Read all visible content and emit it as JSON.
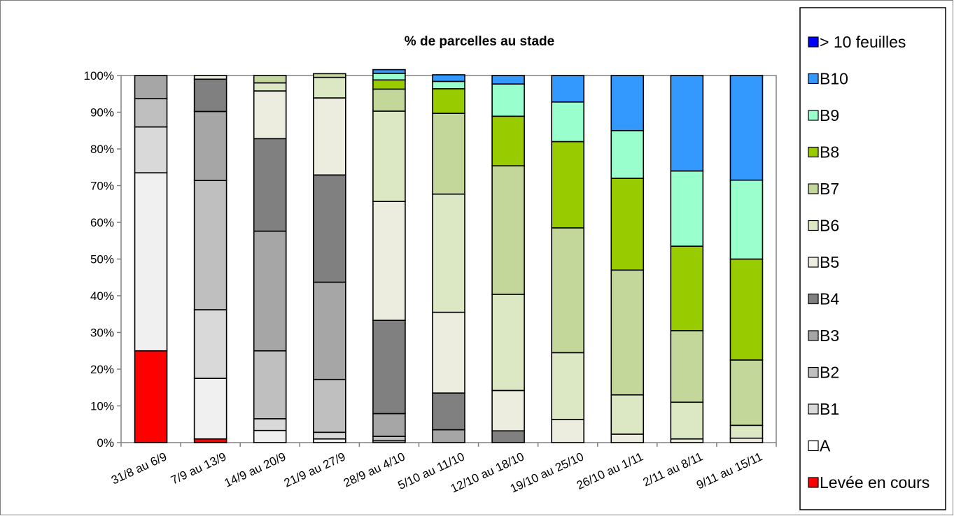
{
  "chart_data": {
    "type": "bar",
    "stacked": true,
    "title": "% de parcelles au stade",
    "xlabel": "",
    "ylabel": "",
    "ylim": [
      0,
      100
    ],
    "y_ticks": [
      "0%",
      "10%",
      "20%",
      "30%",
      "40%",
      "50%",
      "60%",
      "70%",
      "80%",
      "90%",
      "100%"
    ],
    "grid": false,
    "legend_position": "right",
    "categories": [
      "31/8 au 6/9",
      "7/9 au 13/9",
      "14/9 au 20/9",
      "21/9 au 27/9",
      "28/9 au 4/10",
      "5/10 au 11/10",
      "12/10 au 18/10",
      "19/10 au 25/10",
      "26/10 au 1/11",
      "2/11 au 8/11",
      "9/11 au 15/11"
    ],
    "series": [
      {
        "name": "Levée en cours",
        "color": "#ff0000",
        "values": [
          25,
          1,
          0,
          0,
          0,
          0,
          0,
          0,
          0,
          0,
          0
        ]
      },
      {
        "name": "A",
        "color": "#ffffff",
        "values": [
          0,
          0,
          0,
          0,
          0,
          0,
          0,
          0,
          0,
          0,
          0
        ]
      },
      {
        "name": "B1",
        "color": "#f0f0f0",
        "values": [
          48.5,
          16.5,
          3.3,
          1,
          0,
          0,
          0,
          0,
          0,
          0,
          0
        ]
      },
      {
        "name": "B2",
        "color": "#d9d9d9",
        "values": [
          12.5,
          18.7,
          3.2,
          1.8,
          0.5,
          0,
          0,
          0,
          0,
          0,
          0
        ]
      },
      {
        "name": "B3",
        "color": "#bfbfbf",
        "values": [
          7.7,
          35.2,
          18.5,
          14.4,
          1.2,
          0,
          0,
          0,
          0,
          0,
          0
        ]
      },
      {
        "name": "B4",
        "color": "#a6a6a6",
        "values": [
          6.3,
          18.8,
          32.6,
          26.5,
          6.2,
          3.5,
          0,
          0,
          0,
          0,
          0
        ]
      },
      {
        "name": "B5",
        "color": "#808080",
        "values": [
          0,
          8.8,
          25.2,
          29.2,
          25.4,
          10,
          3.2,
          0,
          0,
          0,
          0
        ]
      },
      {
        "name": "B6",
        "color": "#ededdf",
        "values": [
          0,
          1,
          13,
          21,
          32.4,
          22,
          11,
          6.3,
          2.3,
          1,
          1.2
        ]
      },
      {
        "name": "B7",
        "color": "#dce7c4",
        "values": [
          0,
          0,
          2.2,
          5.6,
          24.6,
          32.2,
          26.2,
          18.2,
          10.7,
          10,
          3.5
        ]
      },
      {
        "name": "B8",
        "color": "#c4d79b",
        "values": [
          0,
          0,
          2,
          1,
          6,
          22,
          35,
          34,
          34,
          19.5,
          17.8
        ]
      },
      {
        "name": "B9",
        "color": "#99cc00",
        "values": [
          0,
          0,
          0,
          0,
          2.5,
          6.7,
          13.5,
          23.5,
          25,
          23,
          27.5
        ]
      },
      {
        "name": "B10",
        "color": "#99ffcc",
        "values": [
          0,
          0,
          0,
          0,
          1.8,
          2,
          8.8,
          10.8,
          13,
          20.5,
          21.5
        ]
      },
      {
        "name": "> 10 feuilles",
        "color": "#3399ff",
        "values": [
          0,
          0,
          0,
          0,
          1,
          1.8,
          2.3,
          7.2,
          15,
          26,
          28.5
        ]
      }
    ],
    "legend": [
      {
        "label": "> 10 feuilles",
        "color": "#0000ff"
      },
      {
        "label": "B10",
        "color": "#3399ff"
      },
      {
        "label": "B9",
        "color": "#99ffcc"
      },
      {
        "label": "B8",
        "color": "#99cc00"
      },
      {
        "label": "B7",
        "color": "#c4d79b"
      },
      {
        "label": "B6",
        "color": "#dce7c4"
      },
      {
        "label": "B5",
        "color": "#ededdf"
      },
      {
        "label": "B4",
        "color": "#808080"
      },
      {
        "label": "B3",
        "color": "#a6a6a6"
      },
      {
        "label": "B2",
        "color": "#bfbfbf"
      },
      {
        "label": "B1",
        "color": "#d9d9d9"
      },
      {
        "label": "A",
        "color": "#ffffff"
      },
      {
        "label": "Levée en cours",
        "color": "#ff0000"
      }
    ]
  }
}
